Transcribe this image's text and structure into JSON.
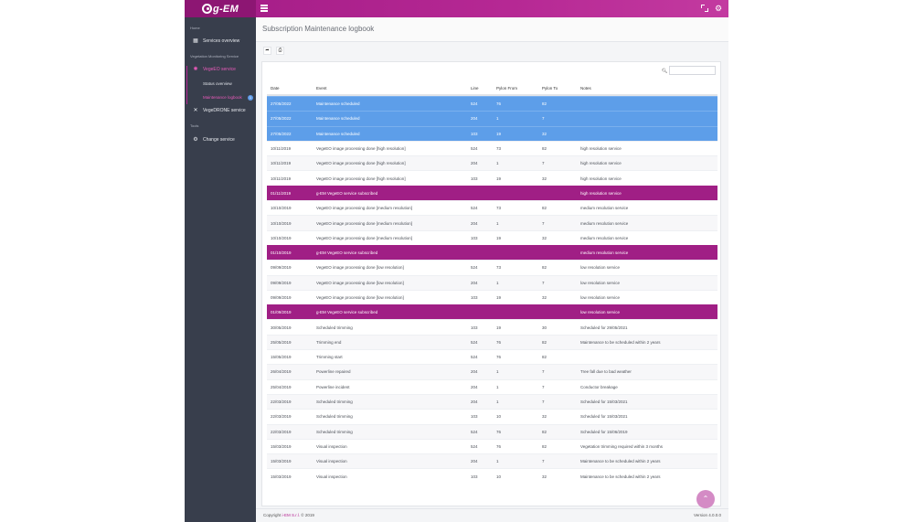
{
  "app": {
    "logo_text": "g-EM"
  },
  "sidebar": {
    "section_home": "Home",
    "services_overview": "Services overview",
    "section_vms": "Vegetation Monitoring Service",
    "vegeeo_service": "VegeEO service",
    "status_overview": "Status overview",
    "maintenance_logbook": "Maintenance logbook",
    "maintenance_badge": "1",
    "vegedrone_service": "VegeDRONE service",
    "section_tools": "Tools",
    "change_service": "Change service"
  },
  "page": {
    "title": "Subscription Maintenance logbook"
  },
  "search": {
    "placeholder": ""
  },
  "table": {
    "headers": {
      "date": "Date",
      "event": "Event",
      "line": "Line",
      "from": "Pylon From",
      "to": "Pylon To",
      "notes": "Notes"
    },
    "rows": [
      {
        "style": "blue",
        "date": "27/05/2022",
        "event": "Maintenance scheduled",
        "line": "524",
        "from": "76",
        "to": "82",
        "notes": ""
      },
      {
        "style": "blue",
        "date": "27/05/2022",
        "event": "Maintenance scheduled",
        "line": "204",
        "from": "1",
        "to": "7",
        "notes": ""
      },
      {
        "style": "blue",
        "date": "27/05/2022",
        "event": "Maintenance scheduled",
        "line": "103",
        "from": "19",
        "to": "32",
        "notes": ""
      },
      {
        "style": "normal",
        "date": "10/11/2019",
        "event": "VegeEO image processing done [high resolution]",
        "line": "524",
        "from": "73",
        "to": "82",
        "notes": "high resolution service"
      },
      {
        "style": "striped",
        "date": "10/11/2019",
        "event": "VegeEO image processing done [high resolution]",
        "line": "204",
        "from": "1",
        "to": "7",
        "notes": "high resolution service"
      },
      {
        "style": "normal",
        "date": "10/11/2019",
        "event": "VegeEO image processing done [high resolution]",
        "line": "103",
        "from": "19",
        "to": "32",
        "notes": "high resolution service"
      },
      {
        "style": "purple",
        "date": "01/11/2019",
        "event": "g-EM VegeEO service subscribed",
        "line": "",
        "from": "",
        "to": "",
        "notes": "high resolution service"
      },
      {
        "style": "normal",
        "date": "10/10/2019",
        "event": "VegeEO image processing done [medium resolution]",
        "line": "524",
        "from": "73",
        "to": "82",
        "notes": "medium resolution service"
      },
      {
        "style": "striped",
        "date": "10/10/2019",
        "event": "VegeEO image processing done [medium resolution]",
        "line": "204",
        "from": "1",
        "to": "7",
        "notes": "medium resolution service"
      },
      {
        "style": "normal",
        "date": "10/10/2019",
        "event": "VegeEO image processing done [medium resolution]",
        "line": "103",
        "from": "19",
        "to": "32",
        "notes": "medium resolution service"
      },
      {
        "style": "purple",
        "date": "01/10/2019",
        "event": "g-EM VegeEO service subscribed",
        "line": "",
        "from": "",
        "to": "",
        "notes": "medium resolution service"
      },
      {
        "style": "normal",
        "date": "09/09/2019",
        "event": "VegeEO image processing done [low resolution]",
        "line": "524",
        "from": "73",
        "to": "82",
        "notes": "low resolution service"
      },
      {
        "style": "striped",
        "date": "09/09/2019",
        "event": "VegeEO image processing done [low resolution]",
        "line": "204",
        "from": "1",
        "to": "7",
        "notes": "low resolution service"
      },
      {
        "style": "normal",
        "date": "09/09/2019",
        "event": "VegeEO image processing done [low resolution]",
        "line": "103",
        "from": "19",
        "to": "32",
        "notes": "low resolution service"
      },
      {
        "style": "purple",
        "date": "01/09/2019",
        "event": "g-EM VegeEO service subscribed",
        "line": "",
        "from": "",
        "to": "",
        "notes": "low resolution service"
      },
      {
        "style": "normal",
        "date": "30/05/2019",
        "event": "Scheduled trimming",
        "line": "103",
        "from": "19",
        "to": "30",
        "notes": "Scheduled for 29/05/2021"
      },
      {
        "style": "striped",
        "date": "25/05/2019",
        "event": "Trimming end",
        "line": "524",
        "from": "76",
        "to": "82",
        "notes": "Maintenance to be scheduled within 2 years"
      },
      {
        "style": "normal",
        "date": "15/05/2019",
        "event": "Trimming start",
        "line": "524",
        "from": "76",
        "to": "82",
        "notes": ""
      },
      {
        "style": "striped",
        "date": "26/04/2019",
        "event": "Powerline repaired",
        "line": "204",
        "from": "1",
        "to": "7",
        "notes": "Tree fall due to bad weather"
      },
      {
        "style": "normal",
        "date": "25/04/2019",
        "event": "Powerline incident",
        "line": "204",
        "from": "1",
        "to": "7",
        "notes": "Conductor breakage"
      },
      {
        "style": "striped",
        "date": "22/03/2019",
        "event": "Scheduled trimming",
        "line": "204",
        "from": "1",
        "to": "7",
        "notes": "Scheduled for 15/03/2021"
      },
      {
        "style": "normal",
        "date": "22/03/2019",
        "event": "Scheduled trimming",
        "line": "103",
        "from": "10",
        "to": "32",
        "notes": "Scheduled for 15/03/2021"
      },
      {
        "style": "striped",
        "date": "22/03/2019",
        "event": "Scheduled trimming",
        "line": "524",
        "from": "76",
        "to": "82",
        "notes": "Scheduled for 15/06/2019"
      },
      {
        "style": "normal",
        "date": "15/03/2019",
        "event": "Visual inspection",
        "line": "524",
        "from": "76",
        "to": "82",
        "notes": "Vegetation trimming required within 3 months"
      },
      {
        "style": "striped",
        "date": "15/03/2019",
        "event": "Visual inspection",
        "line": "204",
        "from": "1",
        "to": "7",
        "notes": "Maintenance to be scheduled within 2 years"
      },
      {
        "style": "normal",
        "date": "15/03/2019",
        "event": "Visual inspection",
        "line": "103",
        "from": "10",
        "to": "32",
        "notes": "Maintenance to be scheduled within 2 years"
      }
    ]
  },
  "footer": {
    "copyright_prefix": "Copyright ",
    "copyright_brand": "i-EM S.r.l.",
    "copyright_suffix": " © 2019",
    "version": "Version 4.0.0.0"
  },
  "colors": {
    "brand": "#b62894",
    "blue_row": "#5d9ee9",
    "purple_row": "#a01f85",
    "sidebar": "#383e4c"
  },
  "icons": {
    "services": "grid-icon",
    "vegeeo": "satellite-icon",
    "vegedrone": "drone-icon",
    "change": "cogs-icon",
    "share": "share-icon",
    "print": "print-icon",
    "search": "search-icon",
    "scroll_top": "chevron-up-icon"
  }
}
